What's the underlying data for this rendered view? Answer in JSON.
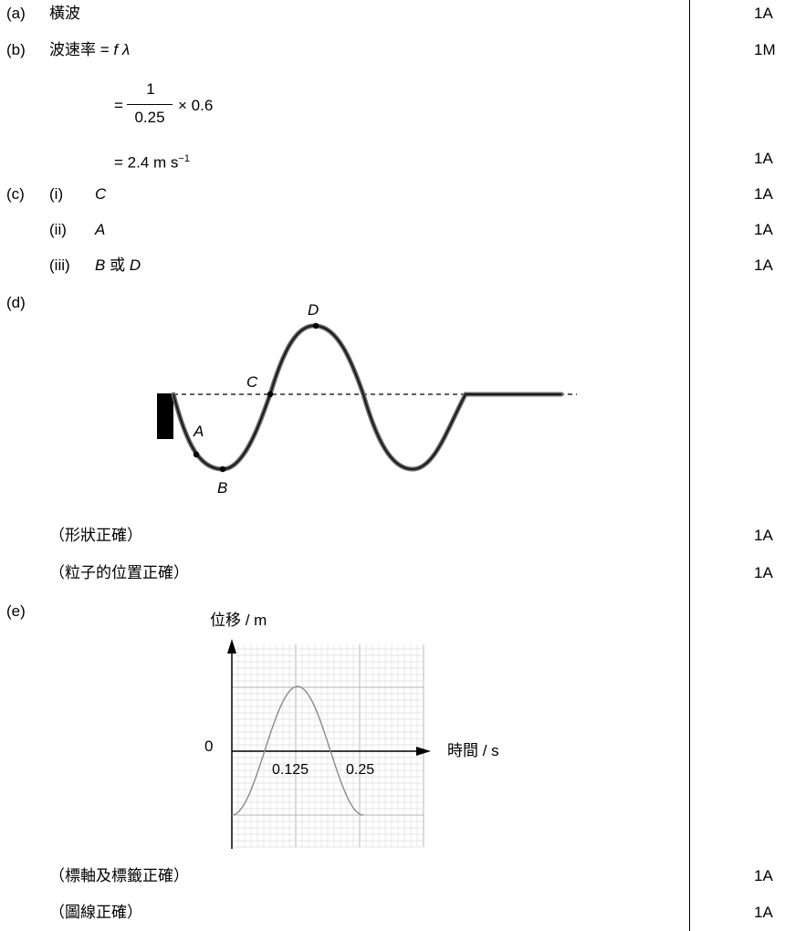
{
  "a": {
    "label": "(a)",
    "answer": "橫波",
    "mark": "1A"
  },
  "b": {
    "label": "(b)",
    "line1": "波速率 =",
    "line1_var": "f λ",
    "mark1": "1M",
    "eq_sign": "=",
    "frac_num": "1",
    "frac_den": "0.25",
    "frac_tail": "× 0.6",
    "line3": "= 2.4 m s",
    "line3_sup": "−1",
    "mark3": "1A"
  },
  "c": {
    "label": "(c)",
    "i_label": "(i)",
    "i_answer": "C",
    "i_mark": "1A",
    "ii_label": "(ii)",
    "ii_answer": "A",
    "ii_mark": "1A",
    "iii_label": "(iii)",
    "iii_answer_1": "B",
    "iii_or": "或",
    "iii_answer_2": "D",
    "iii_mark": "1A"
  },
  "d": {
    "label": "(d)",
    "points": {
      "A": "A",
      "B": "B",
      "C": "C",
      "D": "D"
    },
    "criterion1": "（形狀正確）",
    "mark1": "1A",
    "criterion2": "（粒子的位置正確）",
    "mark2": "1A"
  },
  "e": {
    "label": "(e)",
    "y_label": "位移 / m",
    "x_label": "時間 / s",
    "origin": "0",
    "tick1": "0.125",
    "tick2": "0.25",
    "criterion1": "（標軸及標籤正確）",
    "mark1": "1A",
    "criterion2": "（圖線正確）",
    "mark2": "1A"
  }
}
